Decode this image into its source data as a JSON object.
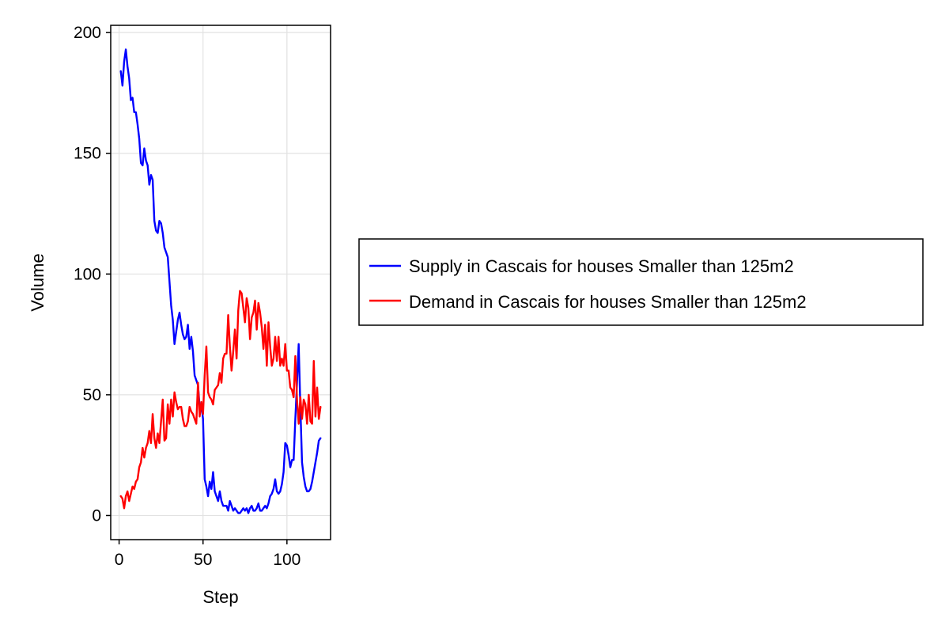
{
  "chart_data": {
    "type": "line",
    "xlabel": "Step",
    "ylabel": "Volume",
    "xlim": [
      -5,
      126
    ],
    "ylim": [
      -10,
      203
    ],
    "xticks": [
      0,
      50,
      100
    ],
    "yticks": [
      0,
      50,
      100,
      150,
      200
    ],
    "grid": true,
    "legend_position": "right",
    "series": [
      {
        "name": "Supply in Cascais for houses Smaller than 125m2",
        "color": "#0000ff",
        "x": [
          1,
          2,
          3,
          4,
          5,
          6,
          7,
          8,
          9,
          10,
          11,
          12,
          13,
          14,
          15,
          16,
          17,
          18,
          19,
          20,
          21,
          22,
          23,
          24,
          25,
          26,
          27,
          28,
          29,
          30,
          31,
          32,
          33,
          34,
          35,
          36,
          37,
          38,
          39,
          40,
          41,
          42,
          43,
          44,
          45,
          46,
          47,
          48,
          49,
          50,
          51,
          52,
          53,
          54,
          55,
          56,
          57,
          58,
          59,
          60,
          61,
          62,
          63,
          64,
          65,
          66,
          67,
          68,
          69,
          70,
          71,
          72,
          73,
          74,
          75,
          76,
          77,
          78,
          79,
          80,
          81,
          82,
          83,
          84,
          85,
          86,
          87,
          88,
          89,
          90,
          91,
          92,
          93,
          94,
          95,
          96,
          97,
          98,
          99,
          100,
          101,
          102,
          103,
          104,
          105,
          106,
          107,
          108,
          109,
          110,
          111,
          112,
          113,
          114,
          115,
          116,
          117,
          118,
          119,
          120
        ],
        "y": [
          184,
          178,
          188,
          193,
          186,
          181,
          172,
          173,
          167,
          167,
          162,
          156,
          146,
          145,
          152,
          147,
          145,
          137,
          141,
          139,
          122,
          118,
          117,
          122,
          121,
          117,
          111,
          109,
          107,
          97,
          87,
          81,
          71,
          76,
          81,
          84,
          79,
          75,
          73,
          74,
          79,
          69,
          74,
          68,
          58,
          56,
          54,
          45,
          46,
          40,
          15,
          12,
          8,
          14,
          11,
          18,
          10,
          8,
          6,
          10,
          6,
          4,
          4,
          4,
          2,
          6,
          4,
          2,
          3,
          2,
          1,
          1,
          2,
          3,
          2,
          3,
          1,
          3,
          4,
          2,
          2,
          3,
          5,
          2,
          2,
          3,
          4,
          3,
          5,
          8,
          9,
          11,
          15,
          10,
          9,
          10,
          13,
          18,
          30,
          29,
          25,
          20,
          23,
          23,
          40,
          55,
          71,
          45,
          22,
          16,
          12,
          10,
          10,
          11,
          14,
          18,
          22,
          26,
          31,
          32
        ]
      },
      {
        "name": "Demand in Cascais for houses Smaller than 125m2",
        "color": "#ff0000",
        "x": [
          1,
          2,
          3,
          4,
          5,
          6,
          7,
          8,
          9,
          10,
          11,
          12,
          13,
          14,
          15,
          16,
          17,
          18,
          19,
          20,
          21,
          22,
          23,
          24,
          25,
          26,
          27,
          28,
          29,
          30,
          31,
          32,
          33,
          34,
          35,
          36,
          37,
          38,
          39,
          40,
          41,
          42,
          43,
          44,
          45,
          46,
          47,
          48,
          49,
          50,
          51,
          52,
          53,
          54,
          55,
          56,
          57,
          58,
          59,
          60,
          61,
          62,
          63,
          64,
          65,
          66,
          67,
          68,
          69,
          70,
          71,
          72,
          73,
          74,
          75,
          76,
          77,
          78,
          79,
          80,
          81,
          82,
          83,
          84,
          85,
          86,
          87,
          88,
          89,
          90,
          91,
          92,
          93,
          94,
          95,
          96,
          97,
          98,
          99,
          100,
          101,
          102,
          103,
          104,
          105,
          106,
          107,
          108,
          109,
          110,
          111,
          112,
          113,
          114,
          115,
          116,
          117,
          118,
          119,
          120
        ],
        "y": [
          8,
          7,
          3,
          8,
          10,
          6,
          9,
          12,
          11,
          14,
          15,
          20,
          22,
          28,
          24,
          28,
          30,
          35,
          30,
          42,
          32,
          28,
          34,
          30,
          39,
          48,
          31,
          32,
          46,
          38,
          48,
          41,
          51,
          47,
          44,
          45,
          45,
          40,
          37,
          37,
          39,
          45,
          43,
          42,
          40,
          38,
          55,
          41,
          47,
          42,
          58,
          70,
          51,
          49,
          48,
          46,
          52,
          53,
          54,
          59,
          55,
          65,
          67,
          67,
          83,
          70,
          60,
          68,
          77,
          65,
          85,
          93,
          92,
          86,
          80,
          90,
          86,
          73,
          82,
          84,
          89,
          77,
          88,
          84,
          78,
          69,
          79,
          62,
          80,
          70,
          62,
          65,
          74,
          64,
          74,
          62,
          65,
          62,
          71,
          60,
          60,
          53,
          52,
          49,
          66,
          48,
          38,
          49,
          40,
          48,
          46,
          38,
          50,
          39,
          38,
          64,
          41,
          53,
          40,
          45
        ]
      }
    ]
  }
}
